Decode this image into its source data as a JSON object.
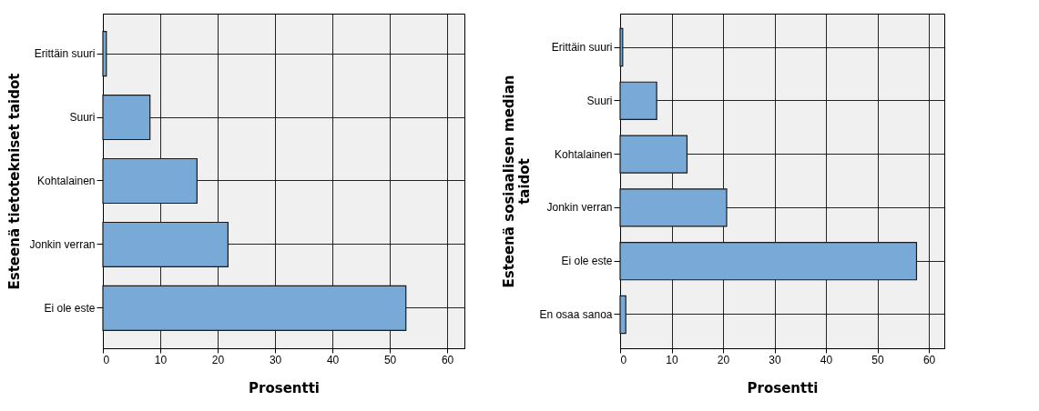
{
  "chart_data": [
    {
      "type": "bar",
      "orientation": "horizontal",
      "categories": [
        "Erittäin suuri",
        "Suuri",
        "Kohtalainen",
        "Jonkin verran",
        "Ei ole este"
      ],
      "values": [
        0.6,
        8.2,
        16.4,
        21.8,
        52.8
      ],
      "color": "#79a9d6",
      "xlim": [
        0,
        63
      ],
      "xticks": [
        0,
        10,
        20,
        30,
        40,
        50,
        60
      ],
      "xlabel": "Prosentti",
      "ylabel": "Esteenä tietotekniset taidot",
      "grid": true
    },
    {
      "type": "bar",
      "orientation": "horizontal",
      "categories": [
        "Erittäin suuri",
        "Suuri",
        "Kohtalainen",
        "Jonkin verran",
        "Ei ole este",
        "En osaa sanoa"
      ],
      "values": [
        0.5,
        7.1,
        13.0,
        20.7,
        57.6,
        1.1
      ],
      "color": "#79a9d6",
      "xlim": [
        0,
        63
      ],
      "xticks": [
        0,
        10,
        20,
        30,
        40,
        50,
        60
      ],
      "xlabel": "Prosentti",
      "ylabel": "Esteenä sosiaalisen median taidot",
      "grid": true
    }
  ]
}
